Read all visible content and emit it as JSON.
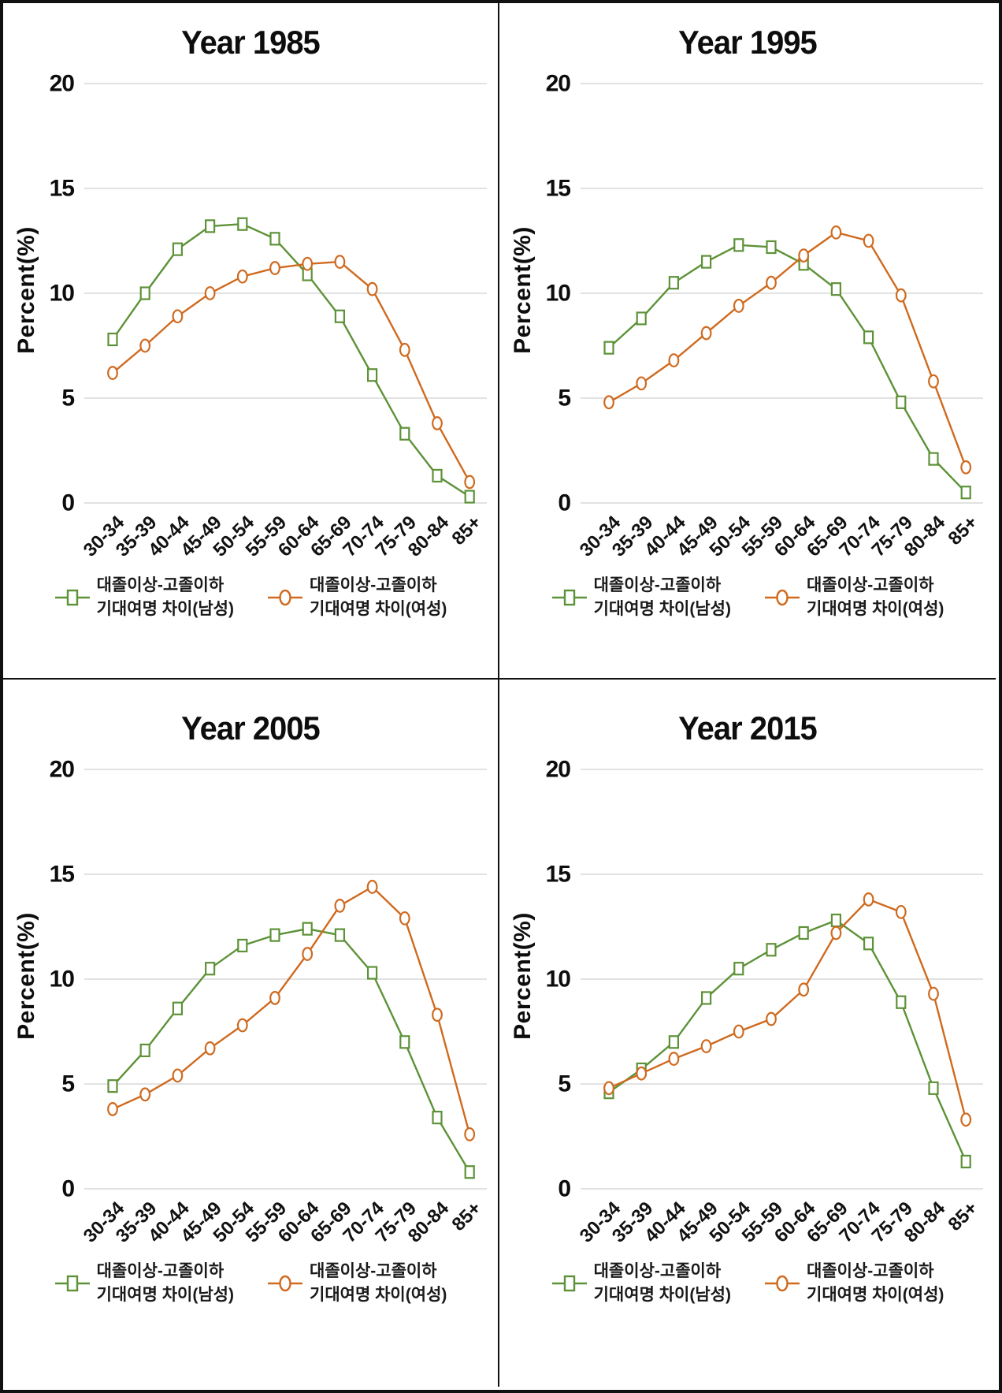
{
  "shared": {
    "ylabel": "Percent(%)",
    "yticks": [
      0,
      5,
      10,
      15,
      20
    ],
    "ylim": [
      0,
      20
    ],
    "grid_color": "#d9d9d9",
    "tick_color": "#0d0d0d",
    "legend": [
      {
        "marker": "square",
        "color": "#5d9238",
        "label_line1": "대졸이상-고졸이하",
        "label_line2": "기대여명 차이(남성)"
      },
      {
        "marker": "circle",
        "color": "#cf6a1f",
        "label_line1": "대졸이상-고졸이하",
        "label_line2": "기대여명 차이(여성)"
      }
    ]
  },
  "chart_data": [
    {
      "type": "line",
      "title": "Year 1985",
      "xlabel": "",
      "ylabel": "Percent(%)",
      "ylim": [
        0,
        20
      ],
      "legend_position": "bottom",
      "grid": true,
      "categories": [
        "30-34",
        "35-39",
        "40-44",
        "45-49",
        "50-54",
        "55-59",
        "60-64",
        "65-69",
        "70-74",
        "75-79",
        "80-84",
        "85+"
      ],
      "series": [
        {
          "name": "대졸이상-고졸이하 기대여명 차이(남성)",
          "marker": "square",
          "color": "#5d9238",
          "values": [
            7.8,
            10.0,
            12.1,
            13.2,
            13.3,
            12.6,
            10.9,
            8.9,
            6.1,
            3.3,
            1.3,
            0.3
          ]
        },
        {
          "name": "대졸이상-고졸이하 기대여명 차이(여성)",
          "marker": "circle",
          "color": "#cf6a1f",
          "values": [
            6.2,
            7.5,
            8.9,
            10.0,
            10.8,
            11.2,
            11.4,
            11.5,
            10.2,
            7.3,
            3.8,
            1.0
          ]
        }
      ]
    },
    {
      "type": "line",
      "title": "Year 1995",
      "xlabel": "",
      "ylabel": "Percent(%)",
      "ylim": [
        0,
        20
      ],
      "legend_position": "bottom",
      "grid": true,
      "categories": [
        "30-34",
        "35-39",
        "40-44",
        "45-49",
        "50-54",
        "55-59",
        "60-64",
        "65-69",
        "70-74",
        "75-79",
        "80-84",
        "85+"
      ],
      "series": [
        {
          "name": "대졸이상-고졸이하 기대여명 차이(남성)",
          "marker": "square",
          "color": "#5d9238",
          "values": [
            7.4,
            8.8,
            10.5,
            11.5,
            12.3,
            12.2,
            11.4,
            10.2,
            7.9,
            4.8,
            2.1,
            0.5
          ]
        },
        {
          "name": "대졸이상-고졸이하 기대여명 차이(여성)",
          "marker": "circle",
          "color": "#cf6a1f",
          "values": [
            4.8,
            5.7,
            6.8,
            8.1,
            9.4,
            10.5,
            11.8,
            12.9,
            12.5,
            9.9,
            5.8,
            1.7
          ]
        }
      ]
    },
    {
      "type": "line",
      "title": "Year 2005",
      "xlabel": "",
      "ylabel": "Percent(%)",
      "ylim": [
        0,
        20
      ],
      "legend_position": "bottom",
      "grid": true,
      "categories": [
        "30-34",
        "35-39",
        "40-44",
        "45-49",
        "50-54",
        "55-59",
        "60-64",
        "65-69",
        "70-74",
        "75-79",
        "80-84",
        "85+"
      ],
      "series": [
        {
          "name": "대졸이상-고졸이하 기대여명 차이(남성)",
          "marker": "square",
          "color": "#5d9238",
          "values": [
            4.9,
            6.6,
            8.6,
            10.5,
            11.6,
            12.1,
            12.4,
            12.1,
            10.3,
            7.0,
            3.4,
            0.8
          ]
        },
        {
          "name": "대졸이상-고졸이하 기대여명 차이(여성)",
          "marker": "circle",
          "color": "#cf6a1f",
          "values": [
            3.8,
            4.5,
            5.4,
            6.7,
            7.8,
            9.1,
            11.2,
            13.5,
            14.4,
            12.9,
            8.3,
            2.6
          ]
        }
      ]
    },
    {
      "type": "line",
      "title": "Year 2015",
      "xlabel": "",
      "ylabel": "Percent(%)",
      "ylim": [
        0,
        20
      ],
      "legend_position": "bottom",
      "grid": true,
      "categories": [
        "30-34",
        "35-39",
        "40-44",
        "45-49",
        "50-54",
        "55-59",
        "60-64",
        "65-69",
        "70-74",
        "75-79",
        "80-84",
        "85+"
      ],
      "series": [
        {
          "name": "대졸이상-고졸이하 기대여명 차이(남성)",
          "marker": "square",
          "color": "#5d9238",
          "values": [
            4.6,
            5.7,
            7.0,
            9.1,
            10.5,
            11.4,
            12.2,
            12.8,
            11.7,
            8.9,
            4.8,
            1.3
          ]
        },
        {
          "name": "대졸이상-고졸이하 기대여명 차이(여성)",
          "marker": "circle",
          "color": "#cf6a1f",
          "values": [
            4.8,
            5.5,
            6.2,
            6.8,
            7.5,
            8.1,
            9.5,
            12.2,
            13.8,
            13.2,
            9.3,
            3.3
          ]
        }
      ]
    }
  ]
}
